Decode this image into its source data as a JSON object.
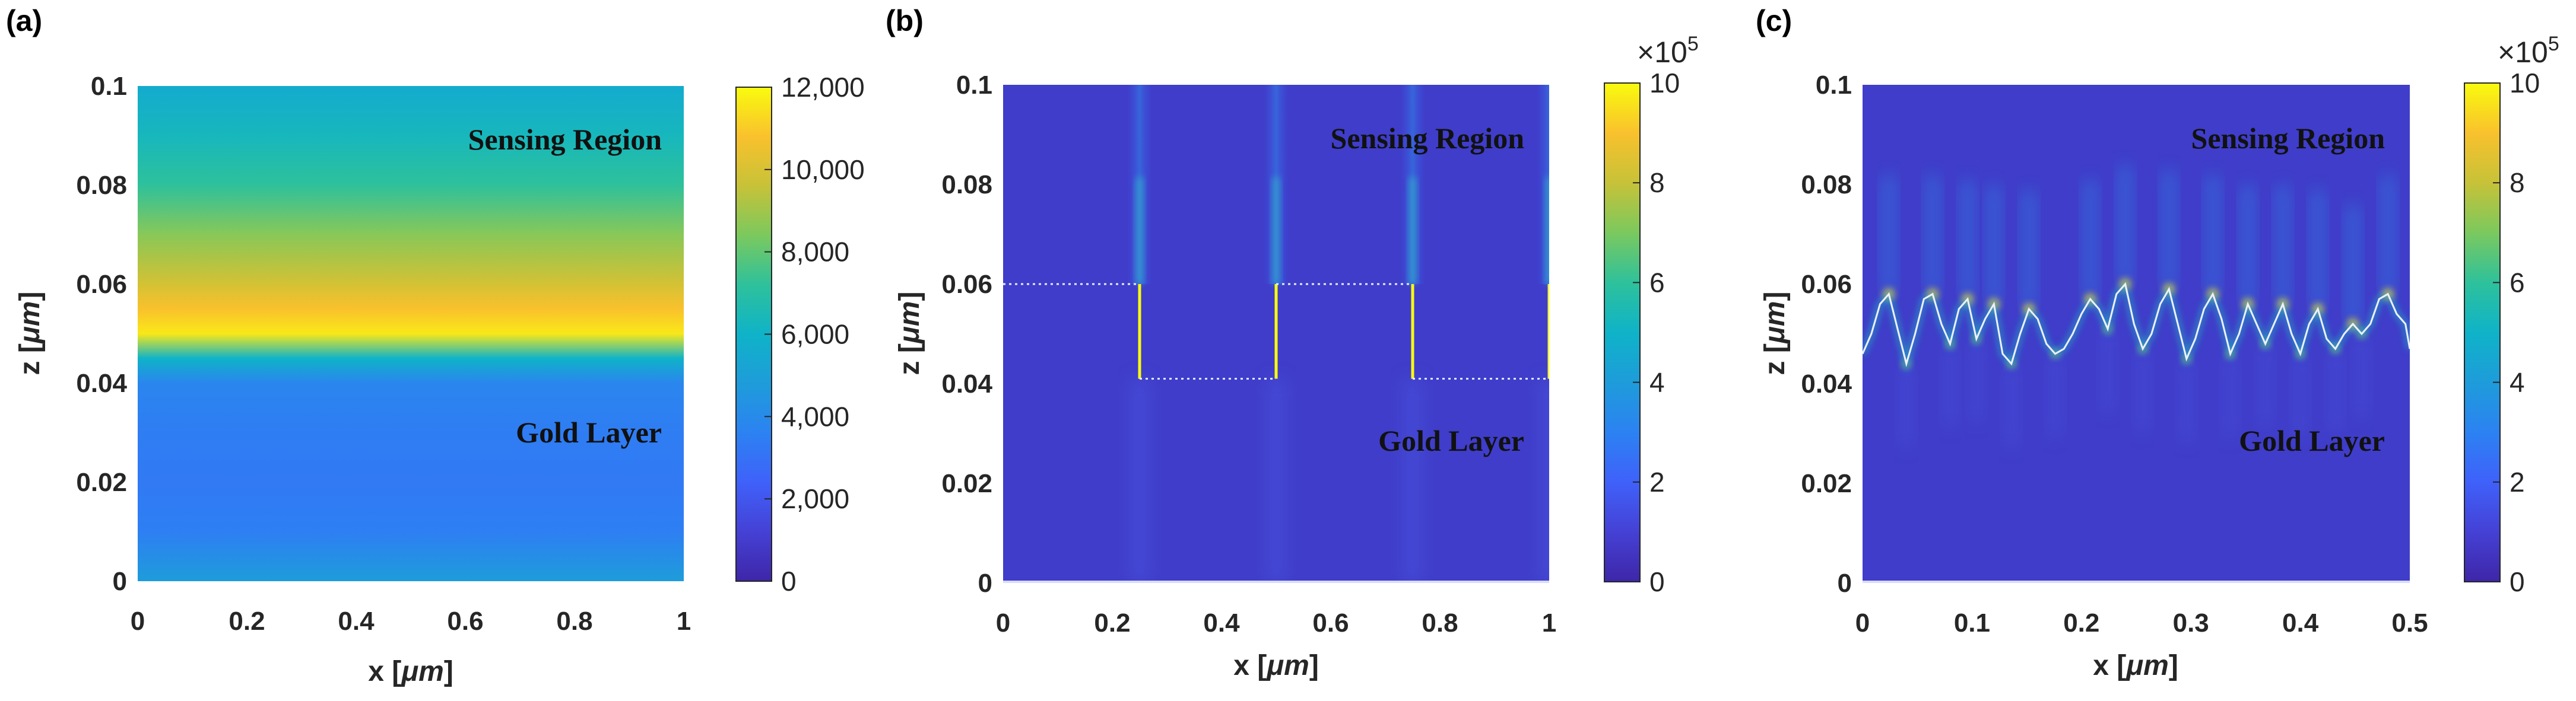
{
  "chart_data": [
    {
      "type": "heatmap",
      "panel_label": "(a)",
      "xlabel": "x [",
      "xlabel_symbol": "μm",
      "xlabel_end": "]",
      "ylabel": "z [",
      "ylabel_symbol": "μm",
      "ylabel_end": "]",
      "xlim": [
        0,
        1
      ],
      "ylim": [
        0,
        0.1
      ],
      "xticks": [
        0,
        0.2,
        0.4,
        0.6,
        0.8,
        1
      ],
      "xtick_labels": [
        "0",
        "0.2",
        "0.4",
        "0.6",
        "0.8",
        "1"
      ],
      "yticks": [
        0,
        0.02,
        0.04,
        0.06,
        0.08,
        0.1
      ],
      "ytick_labels": [
        "0",
        "0.02",
        "0.04",
        "0.06",
        "0.08",
        "0.1"
      ],
      "annotations": [
        "Sensing Region",
        "Gold Layer"
      ],
      "colorbar": {
        "min": 0,
        "max": 12000,
        "ticks": [
          0,
          2000,
          4000,
          6000,
          8000,
          10000,
          12000
        ],
        "tick_labels": [
          "0",
          "2,000",
          "4,000",
          "6,000",
          "8,000",
          "10,000",
          "12,000"
        ],
        "exponent": ""
      },
      "profile": {
        "z": [
          0,
          0.01,
          0.02,
          0.03,
          0.04,
          0.045,
          0.05,
          0.055,
          0.06,
          0.065,
          0.07,
          0.08,
          0.09,
          0.1
        ],
        "value": [
          4800,
          3500,
          3300,
          3400,
          3800,
          6000,
          11600,
          10800,
          9900,
          9200,
          8600,
          7200,
          6300,
          5600
        ]
      }
    },
    {
      "type": "heatmap",
      "panel_label": "(b)",
      "xlabel": "x [",
      "xlabel_symbol": "μm",
      "xlabel_end": "]",
      "ylabel": "z [",
      "ylabel_symbol": "μm",
      "ylabel_end": "]",
      "xlim": [
        0,
        1
      ],
      "ylim": [
        0,
        0.1
      ],
      "xticks": [
        0,
        0.2,
        0.4,
        0.6,
        0.8,
        1
      ],
      "xtick_labels": [
        "0",
        "0.2",
        "0.4",
        "0.6",
        "0.8",
        "1"
      ],
      "yticks": [
        0,
        0.02,
        0.04,
        0.06,
        0.08,
        0.1
      ],
      "ytick_labels": [
        "0",
        "0.02",
        "0.04",
        "0.06",
        "0.08",
        "0.1"
      ],
      "annotations": [
        "Sensing Region",
        "Gold Layer"
      ],
      "colorbar": {
        "min": 0,
        "max": 10,
        "ticks": [
          0,
          2,
          4,
          6,
          8,
          10
        ],
        "tick_labels": [
          "0",
          "2",
          "4",
          "6",
          "8",
          "10"
        ],
        "exponent": "×10",
        "exponent_power": "5"
      },
      "grating": {
        "z_top": 0.06,
        "z_bottom": 0.041,
        "edges_x": [
          0.25,
          0.5,
          0.75,
          1.0
        ],
        "top_segments": [
          [
            0,
            0.25
          ],
          [
            0.5,
            0.75
          ]
        ],
        "bottom_segments": [
          [
            0.25,
            0.5
          ],
          [
            0.75,
            1.0
          ]
        ]
      }
    },
    {
      "type": "heatmap",
      "panel_label": "(c)",
      "xlabel": "x [",
      "xlabel_symbol": "μm",
      "xlabel_end": "]",
      "ylabel": "z [",
      "ylabel_symbol": "μm",
      "ylabel_end": "]",
      "xlim": [
        0,
        0.5
      ],
      "ylim": [
        0,
        0.1
      ],
      "xticks": [
        0,
        0.1,
        0.2,
        0.3,
        0.4,
        0.5
      ],
      "xtick_labels": [
        "0",
        "0.1",
        "0.2",
        "0.3",
        "0.4",
        "0.5"
      ],
      "yticks": [
        0,
        0.02,
        0.04,
        0.06,
        0.08,
        0.1
      ],
      "ytick_labels": [
        "0",
        "0.02",
        "0.04",
        "0.06",
        "0.08",
        "0.1"
      ],
      "annotations": [
        "Sensing Region",
        "Gold Layer"
      ],
      "colorbar": {
        "min": 0,
        "max": 10,
        "ticks": [
          0,
          2,
          4,
          6,
          8,
          10
        ],
        "tick_labels": [
          "0",
          "2",
          "4",
          "6",
          "8",
          "10"
        ],
        "exponent": "×10",
        "exponent_power": "5"
      },
      "surface": {
        "x": [
          0,
          0.008,
          0.016,
          0.024,
          0.032,
          0.04,
          0.048,
          0.056,
          0.064,
          0.072,
          0.08,
          0.088,
          0.096,
          0.104,
          0.112,
          0.12,
          0.128,
          0.136,
          0.144,
          0.152,
          0.16,
          0.168,
          0.176,
          0.184,
          0.192,
          0.2,
          0.208,
          0.216,
          0.224,
          0.232,
          0.24,
          0.248,
          0.256,
          0.264,
          0.272,
          0.28,
          0.288,
          0.296,
          0.304,
          0.312,
          0.32,
          0.328,
          0.336,
          0.344,
          0.352,
          0.36,
          0.368,
          0.376,
          0.384,
          0.392,
          0.4,
          0.408,
          0.416,
          0.424,
          0.432,
          0.44,
          0.448,
          0.456,
          0.464,
          0.472,
          0.48,
          0.488,
          0.496,
          0.5
        ],
        "z": [
          0.046,
          0.05,
          0.056,
          0.058,
          0.051,
          0.044,
          0.05,
          0.057,
          0.058,
          0.052,
          0.048,
          0.055,
          0.057,
          0.049,
          0.053,
          0.056,
          0.046,
          0.044,
          0.05,
          0.055,
          0.053,
          0.048,
          0.046,
          0.047,
          0.05,
          0.054,
          0.057,
          0.055,
          0.051,
          0.058,
          0.06,
          0.052,
          0.047,
          0.05,
          0.056,
          0.059,
          0.052,
          0.045,
          0.049,
          0.055,
          0.058,
          0.053,
          0.046,
          0.05,
          0.056,
          0.052,
          0.048,
          0.052,
          0.056,
          0.05,
          0.046,
          0.052,
          0.055,
          0.049,
          0.047,
          0.05,
          0.052,
          0.05,
          0.052,
          0.057,
          0.058,
          0.054,
          0.052,
          0.047
        ]
      }
    }
  ]
}
